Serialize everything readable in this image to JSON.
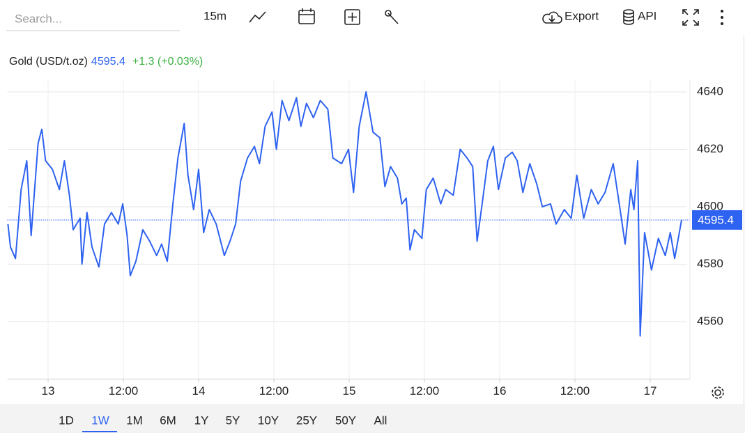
{
  "toolbar": {
    "search_placeholder": "Search...",
    "interval": "15m",
    "export": "Export",
    "api": "API"
  },
  "ranges": {
    "items": [
      "1D",
      "1W",
      "1M",
      "6M",
      "1Y",
      "5Y",
      "10Y",
      "25Y",
      "50Y",
      "All"
    ],
    "selected": "1W"
  },
  "chart_data": {
    "type": "line",
    "title": "Gold (USD/t.oz)",
    "change": "+1.3 (+0.03%)",
    "x": [
      -6.4,
      -6,
      -5.2,
      -4.3,
      -3.4,
      -2.7,
      -1.6,
      -1,
      -0.4,
      0.7,
      1.8,
      2.6,
      3.4,
      4,
      5.1,
      5.4,
      6.2,
      7,
      8.1,
      9,
      10.1,
      11.2,
      11.9,
      12.6,
      13.1,
      14,
      15.1,
      16.2,
      17.3,
      18.1,
      19,
      19.9,
      20.7,
      21.7,
      22.3,
      23.2,
      24,
      24.8,
      25.7,
      26.8,
      28.1,
      29,
      29.9,
      30.7,
      31.8,
      32.9,
      33.7,
      34.6,
      35.7,
      36.4,
      37.3,
      38.4,
      39.6,
      40.3,
      41.2,
      42.3,
      43.4,
      44.6,
      45.4,
      46.8,
      47.9,
      48.7,
      49.6,
      50.7,
      51.8,
      52.9,
      53.7,
      54.6,
      55.7,
      56.4,
      57.1,
      57.7,
      58.4,
      59.6,
      60.3,
      61.4,
      62.6,
      63.4,
      64.6,
      65.7,
      66.8,
      67.7,
      68.4,
      69.2,
      70.1,
      71,
      71.8,
      72.9,
      74,
      74.8,
      75.7,
      76.8,
      77.9,
      78.8,
      80.1,
      81,
      82.3,
      83.4,
      84.3,
      85.4,
      86.6,
      87.7,
      88.8,
      90.1,
      91.2,
      92,
      92.9,
      93.4,
      94,
      94.4,
      95.1,
      96.2,
      97.3,
      98.4,
      99.2,
      99.9,
      101
    ],
    "series": [
      {
        "name": "Gold",
        "color": "#2e62f0",
        "values": [
          4594,
          4586,
          4582,
          4606,
          4616,
          4590,
          4622,
          4627,
          4616,
          4613,
          4606,
          4616,
          4604,
          4592,
          4596,
          4580,
          4598,
          4586,
          4579,
          4594,
          4598,
          4594,
          4601,
          4590,
          4576,
          4581,
          4592,
          4588,
          4583,
          4587,
          4581,
          4601,
          4617,
          4629,
          4611,
          4599,
          4613,
          4591,
          4599,
          4594,
          4583,
          4588,
          4594,
          4609,
          4617,
          4621,
          4615,
          4628,
          4633,
          4620,
          4637,
          4630,
          4638,
          4628,
          4636,
          4631,
          4637,
          4634,
          4617,
          4615,
          4620,
          4605,
          4628,
          4640,
          4626,
          4624,
          4607,
          4614,
          4610,
          4601,
          4603,
          4585,
          4592,
          4589,
          4606,
          4610,
          4601,
          4606,
          4604,
          4620,
          4617,
          4614,
          4588,
          4601,
          4616,
          4621,
          4606,
          4617,
          4619,
          4616,
          4605,
          4615,
          4608,
          4600,
          4601,
          4594,
          4599,
          4596,
          4611,
          4596,
          4606,
          4601,
          4605,
          4615,
          4599,
          4587,
          4606,
          4599,
          4616,
          4555,
          4591,
          4578,
          4589,
          4583,
          4591,
          4582,
          4595.4
        ]
      }
    ],
    "change_color": "#3cb043",
    "xlim": [
      -6.5,
      102.5
    ],
    "xticks": [
      {
        "value": 0,
        "label": "13"
      },
      {
        "value": 12,
        "label": "12:00"
      },
      {
        "value": 24,
        "label": "14"
      },
      {
        "value": 36,
        "label": "12:00"
      },
      {
        "value": 48,
        "label": "15"
      },
      {
        "value": 60,
        "label": "12:00"
      },
      {
        "value": 72,
        "label": "16"
      },
      {
        "value": 84,
        "label": "12:00"
      },
      {
        "value": 96,
        "label": "17"
      }
    ],
    "ylim": [
      4540,
      4644
    ],
    "yticks": [
      4560,
      4580,
      4600,
      4620,
      4640
    ],
    "grid": true
  }
}
